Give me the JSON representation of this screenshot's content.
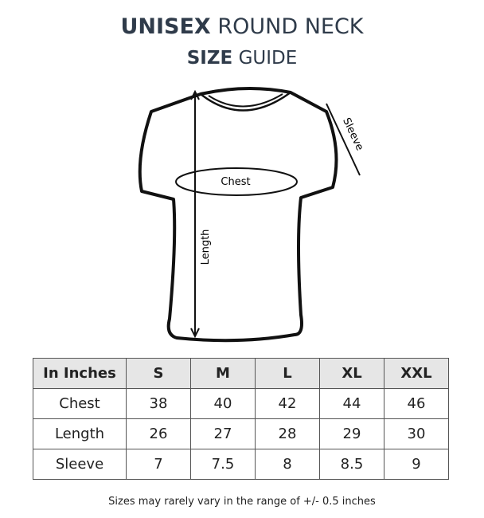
{
  "title": {
    "bold": "UNISEX",
    "rest": "ROUND NECK"
  },
  "subtitle": {
    "bold": "SIZE",
    "rest": "GUIDE"
  },
  "diagram": {
    "chest": "Chest",
    "length": "Length",
    "sleeve": "Sleeve"
  },
  "table": {
    "headers": [
      "In Inches",
      "S",
      "M",
      "L",
      "XL",
      "XXL"
    ],
    "rows": [
      [
        "Chest",
        "38",
        "40",
        "42",
        "44",
        "46"
      ],
      [
        "Length",
        "26",
        "27",
        "28",
        "29",
        "30"
      ],
      [
        "Sleeve",
        "7",
        "7.5",
        "8",
        "8.5",
        "9"
      ]
    ]
  },
  "note": "Sizes may rarely vary in the range of +/- 0.5 inches"
}
